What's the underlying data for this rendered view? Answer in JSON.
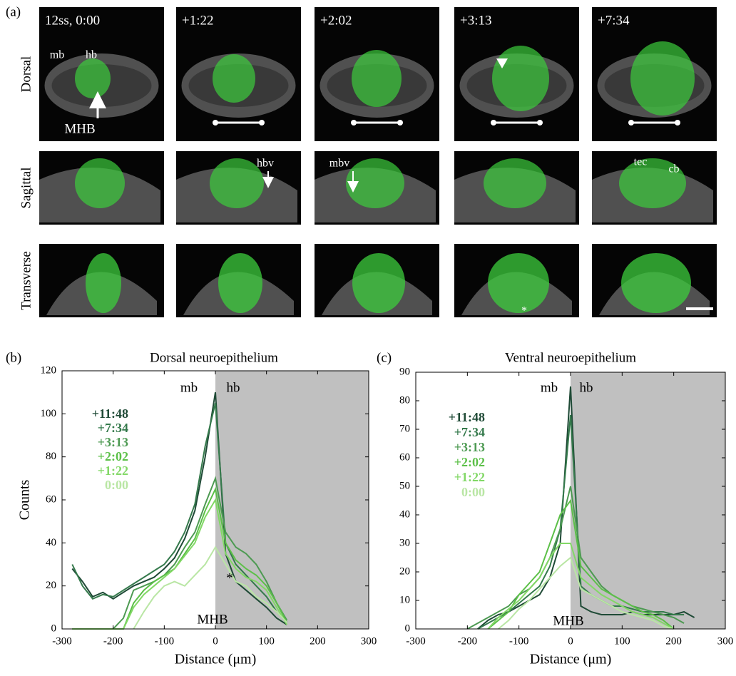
{
  "panel_a": {
    "panel_label": "(a)",
    "row_labels": [
      "Dorsal",
      "Sagittal",
      "Transverse"
    ],
    "column_labels": [
      "12ss, 0:00",
      "+1:22",
      "+2:02",
      "+3:13",
      "+7:34"
    ],
    "annotations": [
      "mb",
      "hb",
      "MHB",
      "hbv",
      "mbv",
      "tec",
      "cb",
      "*"
    ]
  },
  "chart_data": [
    {
      "type": "line",
      "panel_label": "(b)",
      "title": "Dorsal neuroepithelium",
      "x_label": "Distance (μm)",
      "y_label": "Counts",
      "annotations": [
        "mb",
        "hb",
        "MHB",
        "*"
      ],
      "x": [
        -280,
        -260,
        -240,
        -220,
        -200,
        -180,
        -160,
        -140,
        -120,
        -100,
        -80,
        -60,
        -40,
        -20,
        0,
        20,
        40,
        60,
        80,
        100,
        120,
        140,
        160
      ],
      "series": [
        {
          "name": "+11:48",
          "color": "#1f4a36",
          "values": [
            28,
            22,
            15,
            17,
            14,
            17,
            20,
            22,
            24,
            28,
            33,
            42,
            55,
            80,
            110,
            35,
            22,
            18,
            14,
            10,
            5,
            2,
            null
          ]
        },
        {
          "name": "+7:34",
          "color": "#357a4c",
          "values": [
            30,
            20,
            14,
            16,
            15,
            18,
            21,
            24,
            27,
            30,
            36,
            45,
            58,
            85,
            105,
            40,
            30,
            25,
            20,
            15,
            8,
            3,
            null
          ]
        },
        {
          "name": "+3:13",
          "color": "#4d9a52",
          "values": [
            0,
            0,
            0,
            0,
            0,
            5,
            18,
            20,
            22,
            25,
            30,
            38,
            45,
            58,
            70,
            45,
            38,
            35,
            30,
            22,
            12,
            4,
            null
          ]
        },
        {
          "name": "+2:02",
          "color": "#5cc048",
          "values": [
            0,
            0,
            0,
            0,
            0,
            0,
            12,
            18,
            22,
            25,
            28,
            35,
            42,
            55,
            65,
            40,
            32,
            28,
            25,
            20,
            12,
            3,
            null
          ]
        },
        {
          "name": "+1:22",
          "color": "#82d866",
          "values": [
            0,
            0,
            0,
            0,
            0,
            0,
            10,
            16,
            20,
            24,
            28,
            34,
            40,
            52,
            60,
            35,
            28,
            24,
            22,
            18,
            10,
            2,
            null
          ]
        },
        {
          "name": "0:00",
          "color": "#b9e6a4",
          "values": [
            null,
            null,
            null,
            null,
            null,
            null,
            0,
            8,
            15,
            20,
            22,
            20,
            25,
            30,
            38,
            30,
            22,
            20,
            15,
            12,
            8,
            3,
            null
          ]
        }
      ],
      "shade": [
        0,
        300
      ],
      "shade_color": "#c0c0c0",
      "xlim": [
        -300,
        300
      ],
      "xticks": [
        -300,
        -200,
        -100,
        0,
        100,
        200,
        300
      ],
      "ylim": [
        0,
        120
      ],
      "yticks": [
        0,
        20,
        40,
        60,
        80,
        100,
        120
      ]
    },
    {
      "type": "line",
      "panel_label": "(c)",
      "title": "Ventral neuroepithelium",
      "x_label": "Distance (μm)",
      "annotations": [
        "mb",
        "hb",
        "MHB"
      ],
      "x": [
        -220,
        -200,
        -180,
        -160,
        -140,
        -120,
        -100,
        -80,
        -60,
        -40,
        -20,
        0,
        20,
        40,
        60,
        80,
        100,
        120,
        140,
        160,
        180,
        200,
        220,
        240
      ],
      "series": [
        {
          "name": "+11:48",
          "color": "#1f4a36",
          "values": [
            null,
            null,
            0,
            3,
            5,
            6,
            8,
            10,
            12,
            18,
            30,
            85,
            8,
            6,
            5,
            5,
            5,
            6,
            5,
            5,
            5,
            5,
            6,
            4
          ]
        },
        {
          "name": "+7:34",
          "color": "#357a4c",
          "values": [
            null,
            null,
            0,
            2,
            4,
            6,
            9,
            12,
            15,
            22,
            35,
            75,
            15,
            12,
            10,
            8,
            8,
            7,
            6,
            6,
            6,
            5,
            5,
            null
          ]
        },
        {
          "name": "+3:13",
          "color": "#4d9a52",
          "values": [
            null,
            0,
            2,
            4,
            6,
            8,
            12,
            14,
            18,
            25,
            35,
            50,
            25,
            20,
            15,
            12,
            10,
            8,
            7,
            6,
            5,
            4,
            2,
            null
          ]
        },
        {
          "name": "+2:02",
          "color": "#5cc048",
          "values": [
            null,
            null,
            null,
            0,
            3,
            6,
            12,
            16,
            20,
            30,
            40,
            45,
            22,
            18,
            14,
            12,
            10,
            8,
            6,
            5,
            3,
            0,
            null,
            null
          ]
        },
        {
          "name": "+1:22",
          "color": "#82d866",
          "values": [
            null,
            null,
            null,
            0,
            4,
            7,
            10,
            14,
            18,
            25,
            30,
            30,
            18,
            15,
            12,
            10,
            8,
            6,
            5,
            4,
            2,
            0,
            null,
            null
          ]
        },
        {
          "name": "0:00",
          "color": "#b9e6a4",
          "values": [
            null,
            null,
            null,
            null,
            0,
            3,
            7,
            10,
            14,
            18,
            22,
            25,
            14,
            12,
            10,
            8,
            6,
            5,
            4,
            3,
            1,
            0,
            null,
            null
          ]
        }
      ],
      "shade": [
        0,
        300
      ],
      "shade_color": "#c0c0c0",
      "xlim": [
        -300,
        300
      ],
      "xticks": [
        -300,
        -200,
        -100,
        0,
        100,
        200,
        300
      ],
      "ylim": [
        0,
        90
      ],
      "yticks": [
        0,
        10,
        20,
        30,
        40,
        50,
        60,
        70,
        80,
        90
      ]
    }
  ]
}
